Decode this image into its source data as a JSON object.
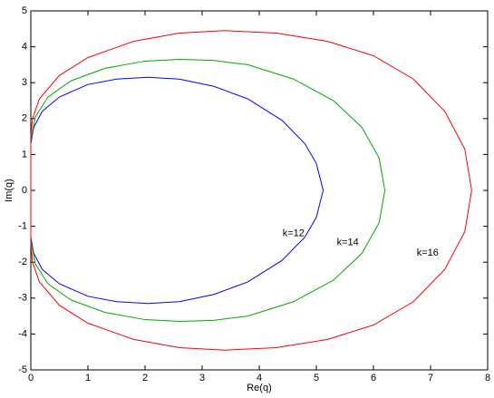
{
  "chart_data": {
    "type": "line",
    "xlabel": "Re(q)",
    "ylabel": "Im(q)",
    "xlim": [
      0,
      8
    ],
    "ylim": [
      -5,
      5
    ],
    "xticks": [
      0,
      1,
      2,
      3,
      4,
      5,
      6,
      7,
      8
    ],
    "yticks": [
      -5,
      -4,
      -3,
      -2,
      -1,
      0,
      1,
      2,
      3,
      4,
      5
    ],
    "grid": false,
    "series": [
      {
        "color": "#0000ff",
        "x": [
          5.12,
          5.0,
          4.8,
          4.4,
          3.8,
          3.2,
          2.6,
          2.05,
          1.5,
          1.0,
          0.5,
          0.2,
          0.05,
          0,
          0,
          0.05,
          0.2,
          0.5,
          1.0,
          1.5,
          2.05,
          2.6,
          3.2,
          3.8,
          4.4,
          4.8,
          5.0,
          5.12
        ],
        "values": [
          0,
          0.75,
          1.3,
          1.95,
          2.55,
          2.9,
          3.1,
          3.15,
          3.1,
          2.95,
          2.6,
          2.2,
          1.75,
          1.3,
          -1.3,
          -1.75,
          -2.2,
          -2.6,
          -2.95,
          -3.1,
          -3.15,
          -3.1,
          -2.9,
          -2.55,
          -1.95,
          -1.3,
          -0.75,
          0
        ]
      },
      {
        "color": "#00aa00",
        "x": [
          6.2,
          6.1,
          5.8,
          5.3,
          4.6,
          3.8,
          3.2,
          2.6,
          2.0,
          1.3,
          0.7,
          0.3,
          0.08,
          0,
          0,
          0.08,
          0.3,
          0.7,
          1.3,
          2.0,
          2.6,
          3.2,
          3.8,
          4.6,
          5.3,
          5.8,
          6.1,
          6.2
        ],
        "values": [
          0,
          0.9,
          1.75,
          2.5,
          3.1,
          3.5,
          3.62,
          3.65,
          3.6,
          3.4,
          3.05,
          2.6,
          2.05,
          1.4,
          -1.4,
          -2.05,
          -2.6,
          -3.05,
          -3.4,
          -3.6,
          -3.65,
          -3.62,
          -3.5,
          -3.1,
          -2.5,
          -1.75,
          -0.9,
          0
        ]
      },
      {
        "color": "#ff0000",
        "x": [
          7.72,
          7.6,
          7.25,
          6.7,
          6.0,
          5.2,
          4.3,
          3.4,
          2.6,
          1.8,
          1.0,
          0.5,
          0.15,
          0.03,
          0,
          0,
          0.03,
          0.15,
          0.5,
          1.0,
          1.8,
          2.6,
          3.4,
          4.3,
          5.2,
          6.0,
          6.7,
          7.25,
          7.6,
          7.72
        ],
        "values": [
          0,
          1.15,
          2.2,
          3.1,
          3.75,
          4.15,
          4.38,
          4.45,
          4.38,
          4.15,
          3.7,
          3.2,
          2.55,
          2.0,
          1.5,
          -1.5,
          -2.0,
          -2.55,
          -3.2,
          -3.7,
          -4.15,
          -4.38,
          -4.45,
          -4.38,
          -4.15,
          -3.75,
          -3.1,
          -2.2,
          -1.15,
          0
        ]
      }
    ],
    "annotations": [
      {
        "text": "k=12",
        "x": 4.6,
        "y": -1.2
      },
      {
        "text": "k=14",
        "x": 5.55,
        "y": -1.45
      },
      {
        "text": "k=16",
        "x": 6.95,
        "y": -1.75
      }
    ]
  }
}
